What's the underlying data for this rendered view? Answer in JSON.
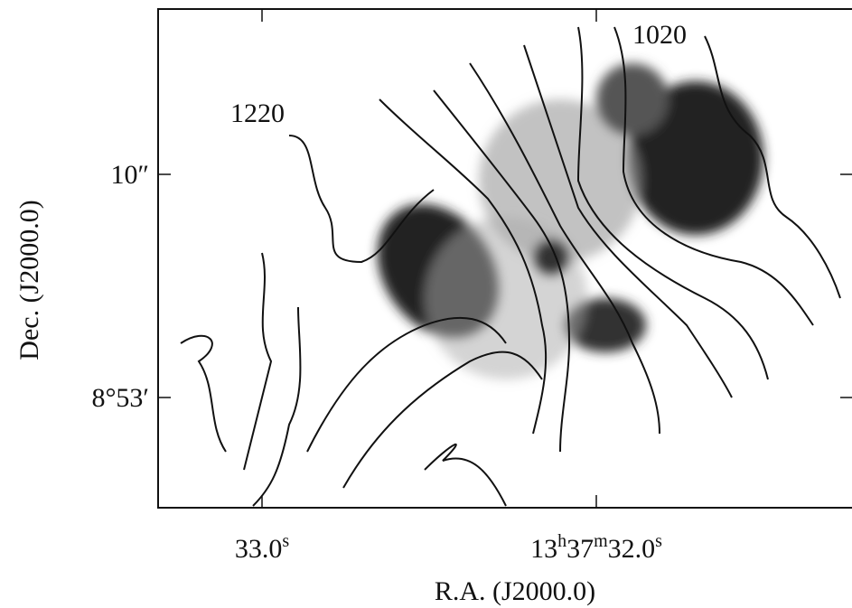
{
  "figure": {
    "x_axis": {
      "label": "R.A. (J2000.0)",
      "ticks": [
        [
          {
            "text": "33.0"
          },
          {
            "text": "s",
            "sup": true
          }
        ],
        [
          {
            "text": "13"
          },
          {
            "text": "h",
            "sup": true
          },
          {
            "text": "37"
          },
          {
            "text": "m",
            "sup": true
          },
          {
            "text": "32.0"
          },
          {
            "text": "s",
            "sup": true
          }
        ]
      ]
    },
    "y_axis": {
      "label": "Dec. (J2000.0)",
      "ticks": [
        [
          {
            "text": "10″"
          }
        ],
        [
          {
            "text": "8°53′"
          }
        ]
      ]
    },
    "annotations": [
      "1220",
      "1020"
    ]
  }
}
